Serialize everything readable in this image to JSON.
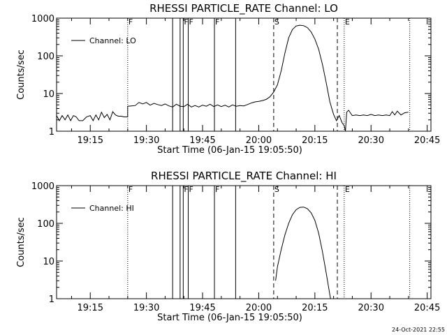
{
  "footer": {
    "timestamp": "24-Oct-2021 22:55"
  },
  "chart_data": [
    {
      "type": "line",
      "title": "RHESSI PARTICLE_RATE Channel: LO",
      "xlabel": "Start Time (06-Jan-15 19:05:50)",
      "ylabel": "Counts/sec",
      "xlim": [
        "19:06:00",
        "20:46:00"
      ],
      "ylim": [
        1,
        1000
      ],
      "yscale": "log",
      "x_ticks": [
        "19:15",
        "19:30",
        "19:45",
        "20:00",
        "20:15",
        "20:30",
        "20:45"
      ],
      "y_ticks": [
        "1",
        "10",
        "100",
        "1000"
      ],
      "legend": {
        "label": "Channel: LO",
        "placement": "top-left"
      },
      "markers": [
        {
          "time": "19:25:00",
          "style": "dotted",
          "label": "F"
        },
        {
          "time": "19:37:00",
          "style": "solid",
          "label": ""
        },
        {
          "time": "19:39:00",
          "style": "solid",
          "label": ""
        },
        {
          "time": "19:39:50",
          "style": "solid",
          "label": "F"
        },
        {
          "time": "19:41:10",
          "style": "solid",
          "label": "F"
        },
        {
          "time": "19:48:10",
          "style": "solid",
          "label": "F"
        },
        {
          "time": "19:53:50",
          "style": "solid",
          "label": ""
        },
        {
          "time": "20:04:00",
          "style": "dashed",
          "label": "S"
        },
        {
          "time": "20:21:00",
          "style": "dashed",
          "label": ""
        },
        {
          "time": "20:22:50",
          "style": "dotted",
          "label": "E"
        },
        {
          "time": "20:40:20",
          "style": "dotted",
          "label": ""
        }
      ],
      "series": [
        {
          "name": "Channel: LO",
          "segments": [
            [
              [
                "19:06:00",
                2.6
              ],
              [
                "19:06:45",
                1.9
              ],
              [
                "19:07:30",
                2.6
              ],
              [
                "19:08:15",
                2.0
              ],
              [
                "19:09:00",
                2.7
              ],
              [
                "19:09:45",
                1.9
              ],
              [
                "19:10:30",
                2.6
              ],
              [
                "19:11:15",
                2.4
              ],
              [
                "19:12:00",
                1.9
              ],
              [
                "19:13:00",
                1.9
              ],
              [
                "19:14:00",
                2.4
              ],
              [
                "19:15:00",
                2.6
              ],
              [
                "19:15:45",
                1.9
              ],
              [
                "19:16:30",
                2.7
              ],
              [
                "19:17:15",
                2.0
              ],
              [
                "19:18:00",
                3.2
              ],
              [
                "19:18:45",
                2.3
              ],
              [
                "19:19:30",
                2.8
              ],
              [
                "19:20:15",
                2.0
              ],
              [
                "19:21:00",
                3.3
              ],
              [
                "19:21:45",
                2.7
              ],
              [
                "19:22:30",
                2.5
              ],
              [
                "19:23:15",
                2.5
              ],
              [
                "19:24:00",
                2.4
              ],
              [
                "19:25:00",
                2.4
              ],
              [
                "19:25:00",
                4.6
              ],
              [
                "19:26:00",
                4.7
              ],
              [
                "19:27:00",
                4.8
              ],
              [
                "19:28:00",
                5.8
              ],
              [
                "19:29:00",
                5.3
              ],
              [
                "19:30:00",
                5.8
              ],
              [
                "19:31:00",
                4.9
              ],
              [
                "19:32:00",
                5.5
              ],
              [
                "19:33:00",
                5.1
              ],
              [
                "19:34:00",
                4.8
              ],
              [
                "19:35:00",
                5.3
              ],
              [
                "19:36:00",
                4.7
              ],
              [
                "19:37:00",
                4.4
              ],
              [
                "19:38:00",
                5.2
              ],
              [
                "19:39:00",
                4.6
              ],
              [
                "19:40:00",
                4.5
              ],
              [
                "19:41:00",
                5.2
              ],
              [
                "19:42:00",
                4.4
              ],
              [
                "19:43:00",
                4.8
              ],
              [
                "19:44:00",
                4.4
              ],
              [
                "19:45:00",
                4.9
              ],
              [
                "19:46:00",
                4.6
              ],
              [
                "19:47:00",
                5.2
              ],
              [
                "19:48:00",
                4.5
              ],
              [
                "19:49:00",
                5.0
              ],
              [
                "19:50:00",
                4.5
              ],
              [
                "19:51:00",
                4.9
              ],
              [
                "19:52:00",
                4.4
              ],
              [
                "19:53:00",
                5.0
              ],
              [
                "19:54:00",
                4.6
              ],
              [
                "19:55:00",
                4.8
              ],
              [
                "19:56:00",
                4.7
              ],
              [
                "19:57:00",
                5.1
              ],
              [
                "19:58:00",
                5.6
              ],
              [
                "19:59:00",
                6.0
              ],
              [
                "20:00:00",
                6.2
              ],
              [
                "20:01:00",
                6.5
              ],
              [
                "20:02:00",
                7.0
              ],
              [
                "20:03:00",
                8.2
              ],
              [
                "20:04:00",
                11
              ],
              [
                "20:05:00",
                17
              ],
              [
                "20:06:00",
                40
              ],
              [
                "20:07:00",
                120
              ],
              [
                "20:08:00",
                300
              ],
              [
                "20:09:00",
                500
              ],
              [
                "20:10:00",
                620
              ],
              [
                "20:11:00",
                650
              ],
              [
                "20:12:00",
                630
              ],
              [
                "20:13:00",
                560
              ],
              [
                "20:14:00",
                430
              ],
              [
                "20:15:00",
                280
              ],
              [
                "20:16:00",
                150
              ],
              [
                "20:17:00",
                60
              ],
              [
                "20:18:00",
                20
              ],
              [
                "20:19:00",
                6
              ],
              [
                "20:20:00",
                2.8
              ],
              [
                "20:20:45",
                1.9
              ],
              [
                "20:21:30",
                2.6
              ],
              [
                "20:22:15",
                1.7
              ],
              [
                "20:22:50",
                1.4
              ],
              [
                "20:23:10",
                1.0
              ],
              [
                "20:23:30",
                3.2
              ],
              [
                "20:24:00",
                3.6
              ],
              [
                "20:25:00",
                2.6
              ],
              [
                "20:26:00",
                2.7
              ],
              [
                "20:27:00",
                2.6
              ],
              [
                "20:28:00",
                2.7
              ],
              [
                "20:29:00",
                2.6
              ],
              [
                "20:30:00",
                2.8
              ],
              [
                "20:31:00",
                2.6
              ],
              [
                "20:32:00",
                2.7
              ],
              [
                "20:33:00",
                2.6
              ],
              [
                "20:34:00",
                2.7
              ],
              [
                "20:35:00",
                2.6
              ],
              [
                "20:35:40",
                3.3
              ],
              [
                "20:36:20",
                2.7
              ],
              [
                "20:37:00",
                3.4
              ],
              [
                "20:38:00",
                2.7
              ],
              [
                "20:39:00",
                3.1
              ],
              [
                "20:40:00",
                3.2
              ]
            ]
          ]
        }
      ]
    },
    {
      "type": "line",
      "title": "RHESSI PARTICLE_RATE Channel: HI",
      "xlabel": "Start Time (06-Jan-15 19:05:50)",
      "ylabel": "Counts/sec",
      "xlim": [
        "19:06:00",
        "20:46:00"
      ],
      "ylim": [
        1,
        1000
      ],
      "yscale": "log",
      "x_ticks": [
        "19:15",
        "19:30",
        "19:45",
        "20:00",
        "20:15",
        "20:30",
        "20:45"
      ],
      "y_ticks": [
        "1",
        "10",
        "100",
        "1000"
      ],
      "legend": {
        "label": "Channel: HI",
        "placement": "top-left"
      },
      "markers": [
        {
          "time": "19:25:00",
          "style": "dotted",
          "label": "F"
        },
        {
          "time": "19:37:00",
          "style": "solid",
          "label": ""
        },
        {
          "time": "19:39:00",
          "style": "solid",
          "label": ""
        },
        {
          "time": "19:39:50",
          "style": "solid",
          "label": "F"
        },
        {
          "time": "19:41:10",
          "style": "solid",
          "label": "F"
        },
        {
          "time": "19:48:10",
          "style": "solid",
          "label": "F"
        },
        {
          "time": "19:53:50",
          "style": "solid",
          "label": ""
        },
        {
          "time": "20:04:00",
          "style": "dashed",
          "label": "S"
        },
        {
          "time": "20:21:00",
          "style": "dashed",
          "label": ""
        },
        {
          "time": "20:22:50",
          "style": "dotted",
          "label": "E"
        },
        {
          "time": "20:40:20",
          "style": "dotted",
          "label": ""
        }
      ],
      "series": [
        {
          "name": "Channel: HI",
          "segments": [
            [
              [
                "20:04:30",
                3.0
              ],
              [
                "20:05:00",
                7
              ],
              [
                "20:06:00",
                20
              ],
              [
                "20:07:00",
                50
              ],
              [
                "20:08:00",
                100
              ],
              [
                "20:09:00",
                170
              ],
              [
                "20:10:00",
                230
              ],
              [
                "20:11:00",
                265
              ],
              [
                "20:12:00",
                270
              ],
              [
                "20:13:00",
                245
              ],
              [
                "20:14:00",
                190
              ],
              [
                "20:15:00",
                120
              ],
              [
                "20:16:00",
                55
              ],
              [
                "20:17:00",
                18
              ],
              [
                "20:18:00",
                5
              ],
              [
                "20:18:40",
                2
              ],
              [
                "20:19:10",
                1.0
              ]
            ]
          ]
        }
      ]
    }
  ]
}
